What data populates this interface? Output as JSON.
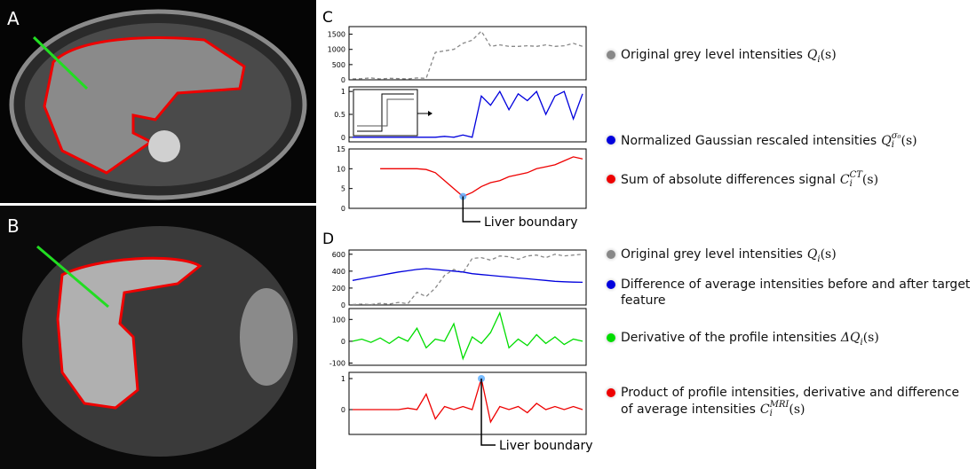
{
  "panels": [
    "A",
    "B",
    "C",
    "D"
  ],
  "chart_data": [
    {
      "type": "line",
      "ylim": [
        0,
        1750
      ],
      "yticks": [
        0,
        500,
        1000,
        1500
      ],
      "series": [
        {
          "name": "Original grey level intensities",
          "symbol": {
            "base": "Q",
            "sub": "i",
            "arg": "(s)"
          },
          "color": "#888888",
          "dash": true,
          "values": [
            30,
            40,
            60,
            30,
            50,
            40,
            30,
            60,
            50,
            900,
            950,
            1000,
            1200,
            1300,
            1600,
            1100,
            1150,
            1100,
            1100,
            1120,
            1100,
            1150,
            1100,
            1120,
            1200,
            1100
          ]
        }
      ]
    },
    {
      "type": "line",
      "ylim": [
        -0.1,
        1.1
      ],
      "yticks": [
        0,
        0.5,
        1
      ],
      "series": [
        {
          "name": "Normalized Gaussian rescaled intensities",
          "symbol": {
            "base": "Q",
            "sub": "i",
            "sup": "σ₀",
            "arg": "(s)"
          },
          "color": "#0000dd",
          "values": [
            0,
            0,
            0,
            0,
            0,
            0,
            0,
            0,
            0,
            0,
            0.02,
            0,
            0.05,
            0,
            0.9,
            0.7,
            1,
            0.6,
            0.95,
            0.8,
            1,
            0.5,
            0.9,
            1,
            0.4,
            0.95
          ]
        }
      ]
    },
    {
      "type": "line",
      "ylim": [
        0,
        15
      ],
      "yticks": [
        0,
        5,
        10,
        15
      ],
      "annotation": "Liver boundary",
      "series": [
        {
          "name": "Sum of absolute differences signal",
          "symbol": {
            "base": "C",
            "sub": "i",
            "sup": "CT",
            "arg": "(s)"
          },
          "color": "#ee0000",
          "values": [
            null,
            null,
            null,
            10,
            10,
            10,
            10,
            10,
            9.8,
            9,
            7,
            5,
            3,
            4,
            5.5,
            6.5,
            7,
            8,
            8.5,
            9,
            10,
            10.5,
            11,
            12,
            13,
            12.5
          ]
        }
      ]
    },
    {
      "type": "line",
      "ylim": [
        0,
        650
      ],
      "yticks": [
        0,
        200,
        400,
        600
      ],
      "series": [
        {
          "name": "Original grey level intensities",
          "symbol": {
            "base": "Q",
            "sub": "i",
            "arg": "(s)"
          },
          "color": "#888888",
          "dash": true,
          "values": [
            5,
            10,
            5,
            20,
            10,
            30,
            15,
            150,
            100,
            200,
            350,
            420,
            380,
            550,
            560,
            530,
            580,
            570,
            540,
            580,
            590,
            560,
            600,
            580,
            590,
            600
          ]
        },
        {
          "name": "Difference of average intensities before and after target feature",
          "color": "#0000dd",
          "values": [
            290,
            310,
            330,
            350,
            370,
            390,
            405,
            420,
            430,
            420,
            410,
            400,
            390,
            370,
            360,
            350,
            340,
            330,
            320,
            310,
            300,
            290,
            280,
            275,
            270,
            268
          ]
        }
      ]
    },
    {
      "type": "line",
      "ylim": [
        -110,
        150
      ],
      "yticks": [
        -100,
        0,
        100
      ],
      "series": [
        {
          "name": "Derivative of the profile intensities",
          "symbol": {
            "base": "ΔQ",
            "sub": "i",
            "arg": "(s)"
          },
          "color": "#00dd00",
          "values": [
            0,
            10,
            -5,
            15,
            -10,
            20,
            0,
            60,
            -30,
            10,
            0,
            80,
            -80,
            20,
            -10,
            40,
            130,
            -30,
            10,
            -20,
            30,
            -10,
            20,
            -15,
            10,
            0
          ]
        }
      ]
    },
    {
      "type": "line",
      "ylim": [
        -0.8,
        1.2
      ],
      "yticks": [
        0,
        1
      ],
      "annotation": "Liver boundary",
      "series": [
        {
          "name": "Product of profile intensities, derivative and difference of average intensities",
          "symbol": {
            "base": "C",
            "sub": "i",
            "sup": "MRI",
            "arg": "(s)"
          },
          "color": "#ee0000",
          "values": [
            0,
            0,
            0,
            0,
            0,
            0,
            0.05,
            0,
            0.5,
            -0.3,
            0.1,
            0,
            0.1,
            0,
            1,
            -0.4,
            0.1,
            0,
            0.1,
            -0.1,
            0.2,
            0,
            0.1,
            0,
            0.1,
            0
          ]
        }
      ]
    }
  ]
}
